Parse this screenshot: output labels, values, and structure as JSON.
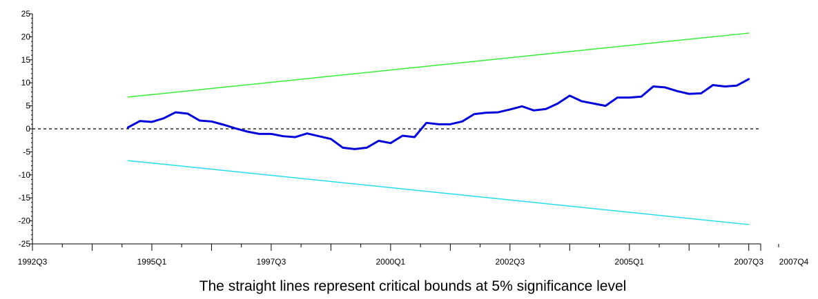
{
  "chart_data": {
    "type": "line",
    "title": "",
    "caption": "The straight lines represent critical bounds at 5% significance level",
    "xlabel": "",
    "ylabel": "",
    "x_tick_labels": [
      "1992Q3",
      "1995Q1",
      "1997Q3",
      "2000Q1",
      "2002Q3",
      "2005Q1",
      "2007Q3",
      "2007Q4"
    ],
    "y_ticks": [
      25,
      20,
      15,
      10,
      5,
      0,
      -5,
      -10,
      -15,
      -20,
      -25
    ],
    "ylim": [
      -25,
      25
    ],
    "zero_line": {
      "value": 0,
      "style": "dashed",
      "color": "#000000"
    },
    "series": [
      {
        "color": "#0000dd",
        "x": [
          "1994Q3",
          "1994Q4",
          "1995Q1",
          "1995Q2",
          "1995Q3",
          "1995Q4",
          "1996Q1",
          "1996Q2",
          "1996Q3",
          "1996Q4",
          "1997Q1",
          "1997Q2",
          "1997Q3",
          "1997Q4",
          "1998Q1",
          "1998Q2",
          "1998Q3",
          "1998Q4",
          "1999Q1",
          "1999Q2",
          "1999Q3",
          "1999Q4",
          "2000Q1",
          "2000Q2",
          "2000Q3",
          "2000Q4",
          "2001Q1",
          "2001Q2",
          "2001Q3",
          "2001Q4",
          "2002Q1",
          "2002Q2",
          "2002Q3",
          "2002Q4",
          "2003Q1",
          "2003Q2",
          "2003Q3",
          "2003Q4",
          "2004Q1",
          "2004Q2",
          "2004Q3",
          "2004Q4",
          "2005Q1",
          "2005Q2",
          "2005Q3",
          "2005Q4",
          "2006Q1",
          "2006Q2",
          "2006Q3",
          "2006Q4",
          "2007Q1",
          "2007Q2",
          "2007Q3"
        ],
        "values": [
          0.3,
          1.7,
          1.5,
          2.3,
          3.6,
          3.3,
          1.8,
          1.6,
          0.9,
          0.1,
          -0.6,
          -1.1,
          -1.1,
          -1.6,
          -1.8,
          -1.0,
          -1.6,
          -2.2,
          -4.1,
          -4.4,
          -4.1,
          -2.6,
          -3.1,
          -1.5,
          -1.8,
          1.3,
          1.0,
          1.0,
          1.6,
          3.2,
          3.5,
          3.6,
          4.2,
          4.9,
          4.0,
          4.3,
          5.5,
          7.2,
          6.0,
          5.5,
          5.0,
          6.8,
          6.8,
          7.0,
          9.2,
          9.0,
          8.2,
          7.6,
          7.7,
          9.5,
          9.2,
          9.4,
          10.8
        ]
      },
      {
        "color": "#33ee33",
        "x": [
          "1994Q3",
          "2007Q3"
        ],
        "values": [
          6.9,
          20.8
        ]
      },
      {
        "color": "#22ddee",
        "x": [
          "1994Q3",
          "2007Q3"
        ],
        "values": [
          -6.9,
          -20.8
        ]
      }
    ],
    "grid": false,
    "legend": "none"
  }
}
